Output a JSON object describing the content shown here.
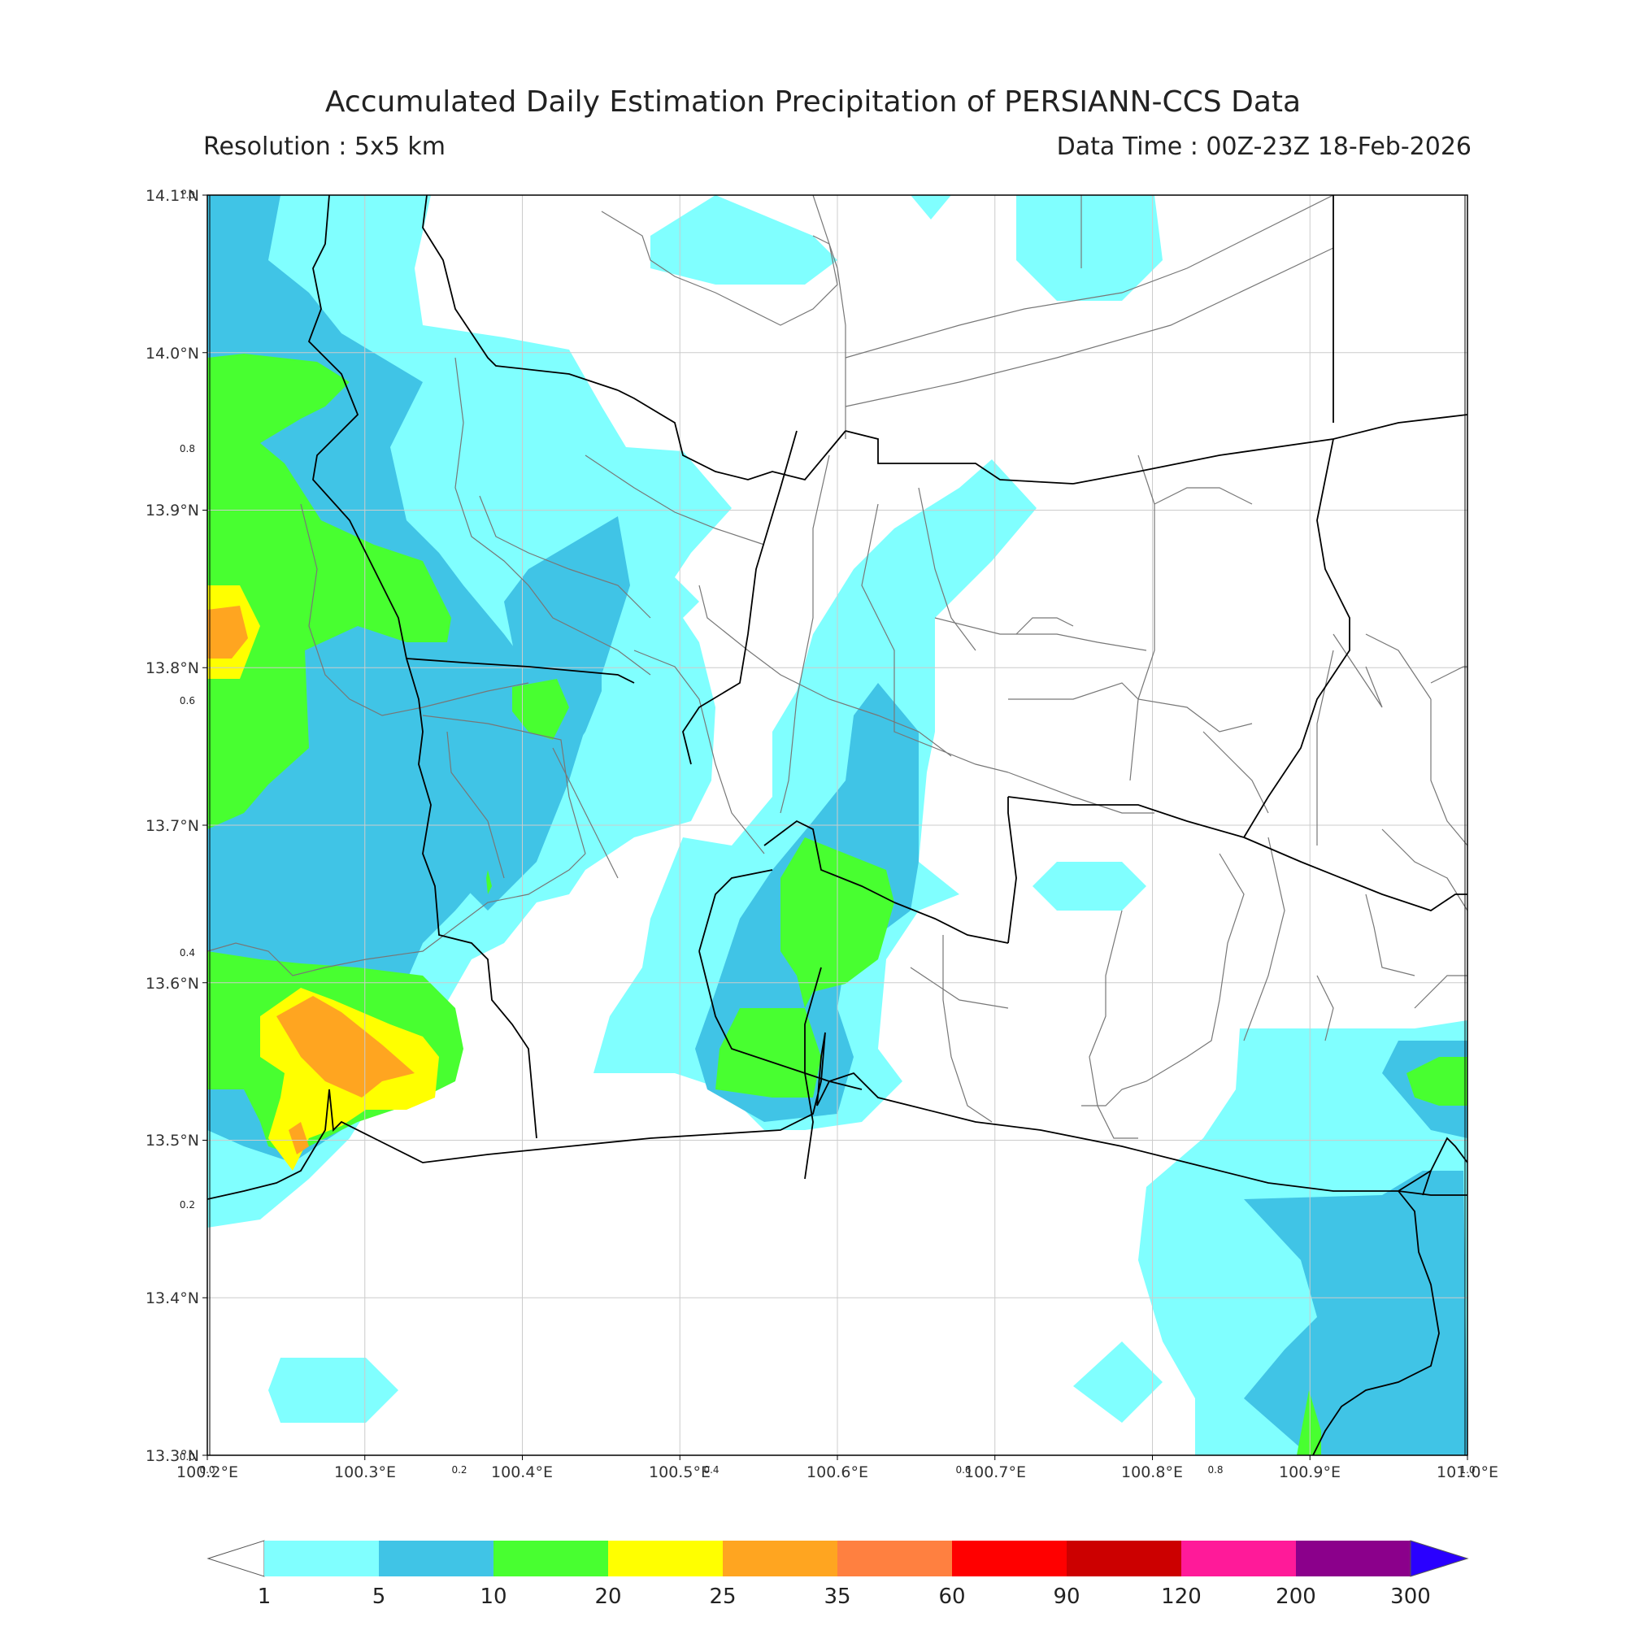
{
  "title": "Accumulated Daily Estimation Precipitation of PERSIANN-CCS Data",
  "resolution": "Resolution : 5x5 km",
  "data_time": "Data Time : 00Z-23Z 18-Feb-2026",
  "axes": {
    "lon_range": [
      100.2,
      101.0
    ],
    "lat_range": [
      13.3,
      14.1
    ],
    "lon_ticks": [
      "100.2°E",
      "100.3°E",
      "100.4°E",
      "100.5°E",
      "100.6°E",
      "100.7°E",
      "100.8°E",
      "100.9°E",
      "101.0°E"
    ],
    "lat_ticks": [
      "14.1°N",
      "14.0°N",
      "13.9°N",
      "13.8°N",
      "13.7°N",
      "13.6°N",
      "13.5°N",
      "13.4°N",
      "13.3°N"
    ],
    "inner_x_ticks": [
      "0.0",
      "0.2",
      "0.4",
      "0.6",
      "0.8",
      "1.0"
    ],
    "inner_y_ticks": [
      "1.0",
      "0.8",
      "0.6",
      "0.4",
      "0.2",
      "0.0"
    ],
    "grid": true
  },
  "colorbar": {
    "labels": [
      "1",
      "5",
      "10",
      "20",
      "25",
      "35",
      "60",
      "90",
      "120",
      "200",
      "300"
    ],
    "colors": [
      "#80ffff",
      "#40c4e6",
      "#48ff30",
      "#ffff00",
      "#ffa520",
      "#ff8040",
      "#ff0000",
      "#cc0000",
      "#ff1a99",
      "#8b008b"
    ],
    "over_color": "#2a00ff",
    "under_color": "#ffffff"
  }
}
